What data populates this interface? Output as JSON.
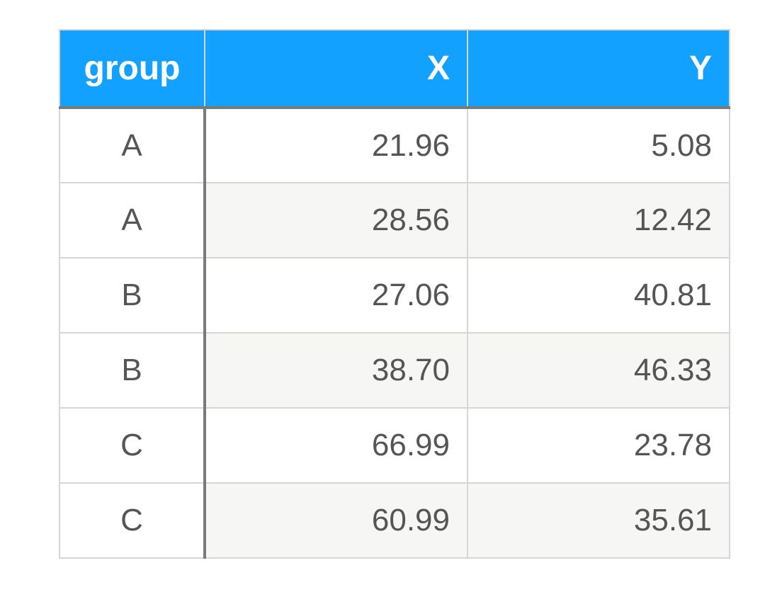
{
  "chart_data": {
    "type": "table",
    "columns": [
      "group",
      "X",
      "Y"
    ],
    "rows": [
      [
        "A",
        "21.96",
        "5.08"
      ],
      [
        "A",
        "28.56",
        "12.42"
      ],
      [
        "B",
        "27.06",
        "40.81"
      ],
      [
        "B",
        "38.70",
        "46.33"
      ],
      [
        "C",
        "66.99",
        "23.78"
      ],
      [
        "C",
        "60.99",
        "35.61"
      ]
    ],
    "colors": {
      "header_background": "#12a1ff",
      "header_text": "#ffffff",
      "cell_text": "#555555",
      "stripe": "#f6f6f4",
      "grid": "#d6d6d6",
      "separator": "#7a7a7a"
    }
  }
}
